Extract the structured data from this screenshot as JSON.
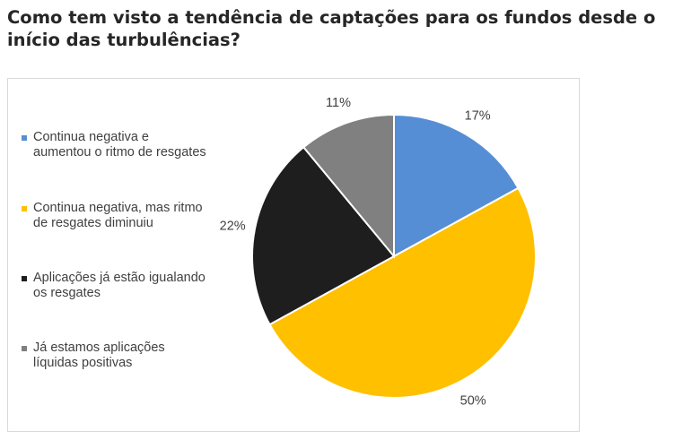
{
  "title": "Como tem visto a tendência de captações para os fundos desde o início das turbulências?",
  "colors": {
    "series1": "#558ed5",
    "series2": "#ffc000",
    "series3": "#1e1e1e",
    "series4": "#808080"
  },
  "chart_data": {
    "type": "pie",
    "title": "Como tem visto a tendência de captações para os fundos desde o início das turbulências?",
    "legend_position": "left",
    "start_angle": "12 o'clock, clockwise",
    "categories": [
      "Continua negativa e aumentou o ritmo de resgates",
      "Continua negativa, mas ritmo de resgates diminuiu",
      "Aplicações já estão igualando os resgates",
      "Já estamos aplicações líquidas positivas"
    ],
    "values": [
      17,
      50,
      22,
      11
    ],
    "data_labels": [
      "17%",
      "50%",
      "22%",
      "11%"
    ],
    "colors": [
      "#558ed5",
      "#ffc000",
      "#1e1e1e",
      "#808080"
    ]
  }
}
